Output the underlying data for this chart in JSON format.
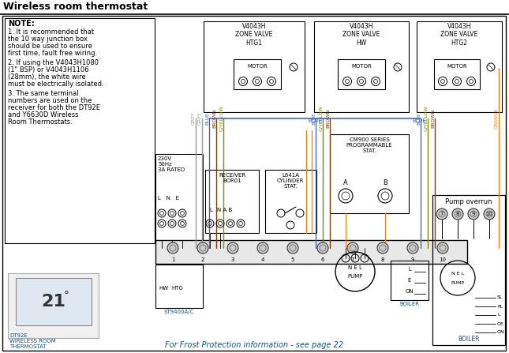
{
  "title": "Wireless room thermostat",
  "title_color": "#000000",
  "title_fontsize": 9,
  "bg_color": "#ffffff",
  "note_title": "NOTE:",
  "note_lines_1": [
    "1. It is recommended that",
    "the 10 way junction box",
    "should be used to ensure",
    "first time, fault free wiring."
  ],
  "note_lines_2": [
    "2. If using the V4043H1080",
    "(1\" BSP) or V4043H1106",
    "(28mm), the white wire",
    "must be electrically isolated."
  ],
  "note_lines_3": [
    "3. The same terminal",
    "numbers are used on the",
    "receiver for both the DT92E",
    "and Y6630D Wireless",
    "Room Thermostats."
  ],
  "footer_text": "For Frost Protection information - see page 22",
  "valve1_label": "V4043H\nZONE VALVE\nHTG1",
  "valve2_label": "V4043H\nZONE VALVE\nHW",
  "valve3_label": "V4043H\nZONE VALVE\nHTG2",
  "pump_overrun_label": "Pump overrun",
  "boiler_label": "BOILER",
  "st9400_label": "ST9400A/C",
  "hwhtg_label": "HW HTG",
  "dt92e_label": "DT92E\nWIRELESS ROOM\nTHERMOSTAT",
  "receiver_label": "RECEIVER\nBOR01",
  "cylinder_stat_label": "L641A\nCYLINDER\nSTAT.",
  "cm900_label": "CM900 SERIES\nPROGRAMMABLE\nSTAT.",
  "pump_label": "N E L\nPUMP",
  "power_label": "230V\n50Hz\n3A RATED",
  "lne_label": "L   N   E",
  "wire_grey": "#999999",
  "wire_blue": "#4466bb",
  "wire_brown": "#7B3F00",
  "wire_orange": "#FF8000",
  "wire_gyellow": "#888800",
  "wire_black": "#222222"
}
